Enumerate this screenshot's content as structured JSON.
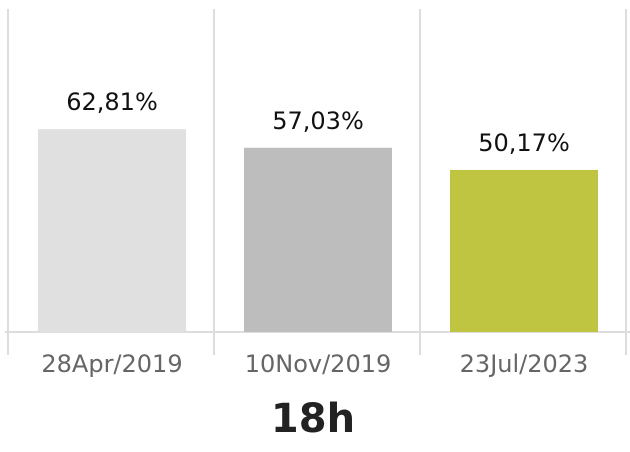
{
  "chart_data": {
    "type": "bar",
    "xlabel": "18h",
    "categories": [
      "28Apr/2019",
      "10Nov/2019",
      "23Jul/2023"
    ],
    "values": [
      62.81,
      57.03,
      50.17
    ],
    "value_labels": [
      "62,81%",
      "57,03%",
      "50,17%"
    ],
    "colors": [
      "#e0e0e0",
      "#bdbdbd",
      "#bfc540"
    ],
    "ylim": [
      0,
      100
    ]
  }
}
